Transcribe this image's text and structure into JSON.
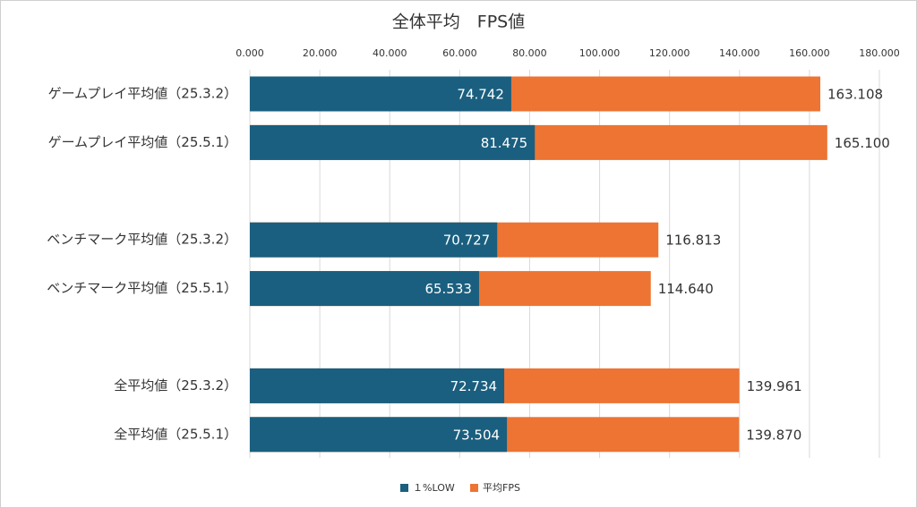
{
  "chart_data": {
    "type": "bar",
    "orientation": "horizontal",
    "overlap": true,
    "title": "全体平均　FPS値",
    "categories": [
      "ゲームプレイ平均値（25.3.2）",
      "ゲームプレイ平均値（25.5.1）",
      "ベンチマーク平均値（25.3.2）",
      "ベンチマーク平均値（25.5.1）",
      "全平均値（25.3.2）",
      "全平均値（25.5.1）"
    ],
    "series": [
      {
        "name": "平均FPS",
        "color": "#ed7433",
        "values": [
          163.108,
          165.1,
          116.813,
          114.64,
          139.961,
          139.87
        ],
        "value_labels": [
          "163.108",
          "165.100",
          "116.813",
          "114.640",
          "139.961",
          "139.870"
        ]
      },
      {
        "name": "１%LOW",
        "color": "#1a5f7f",
        "values": [
          74.742,
          81.475,
          70.727,
          65.533,
          72.734,
          73.504
        ],
        "value_labels": [
          "74.742",
          "81.475",
          "70.727",
          "65.533",
          "72.734",
          "73.504"
        ]
      }
    ],
    "xlim": [
      0,
      180
    ],
    "xticks": [
      {
        "value": 0,
        "label": "0.000"
      },
      {
        "value": 20,
        "label": "20.000"
      },
      {
        "value": 40,
        "label": "40.000"
      },
      {
        "value": 60,
        "label": "60.000"
      },
      {
        "value": 80,
        "label": "80.000"
      },
      {
        "value": 100,
        "label": "100.000"
      },
      {
        "value": 120,
        "label": "120.000"
      },
      {
        "value": 140,
        "label": "140.000"
      },
      {
        "value": 160,
        "label": "160.000"
      },
      {
        "value": 180,
        "label": "180.000"
      }
    ],
    "grid": true,
    "legend": "bottom"
  }
}
